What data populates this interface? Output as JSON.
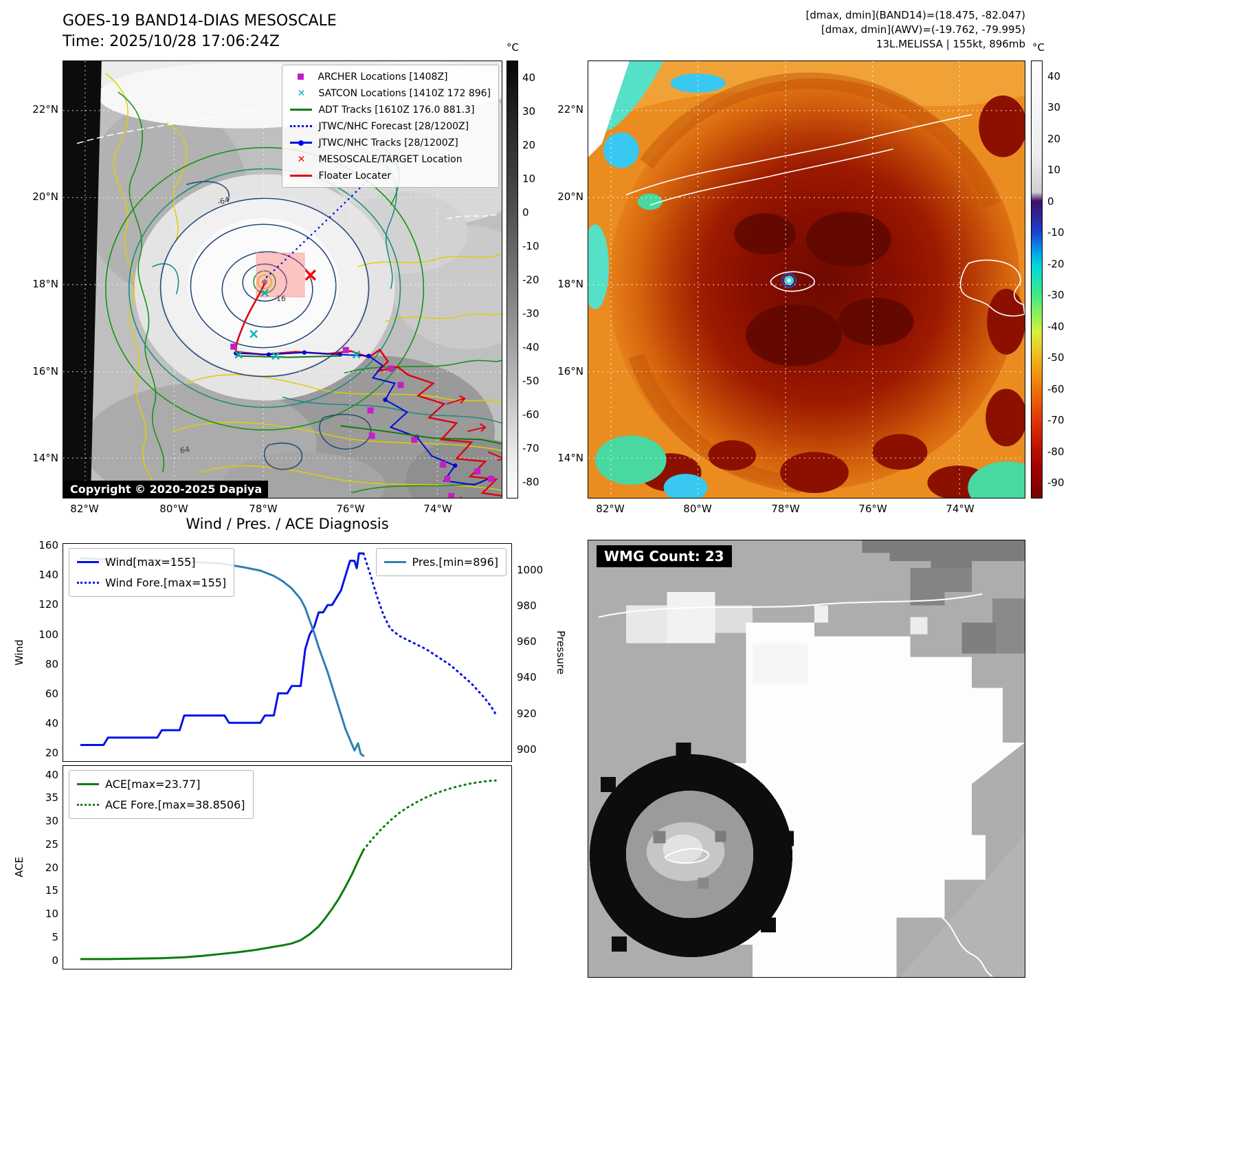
{
  "band14_panel": {
    "title": "GOES-19 BAND14-DIAS MESOSCALE",
    "time_line": "Time: 2025/10/28 17:06:24Z",
    "copyright": "Copyright © 2020-2025 Dapiya",
    "contour_labels": [
      "-64",
      "-16",
      "64"
    ],
    "axis": {
      "lat_ticks": [
        "22°N",
        "20°N",
        "18°N",
        "16°N",
        "14°N"
      ],
      "lon_ticks": [
        "82°W",
        "80°W",
        "78°W",
        "76°W",
        "74°W"
      ]
    },
    "colorbar": {
      "unit": "°C",
      "ticks": [
        40,
        30,
        20,
        10,
        0,
        -10,
        -20,
        -30,
        -40,
        -50,
        -60,
        -70,
        -80
      ]
    },
    "legend": [
      {
        "label": "ARCHER Locations [1408Z]",
        "marker": "square",
        "color": "#c41fc4"
      },
      {
        "label": "SATCON Locations [1410Z 172 896]",
        "marker": "x",
        "color": "#00b4b4"
      },
      {
        "label": "ADT Tracks [1610Z 176.0 881.3]",
        "marker": "line",
        "color": "#0b7d0b"
      },
      {
        "label": "JTWC/NHC Forecast [28/1200Z]",
        "marker": "dotted-line",
        "color": "#0008e8"
      },
      {
        "label": "JTWC/NHC Tracks [28/1200Z]",
        "marker": "line-dot",
        "color": "#0008e8"
      },
      {
        "label": "MESOSCALE/TARGET Location",
        "marker": "x",
        "color": "#ff0000"
      },
      {
        "label": "Floater Locater",
        "marker": "line",
        "color": "#e00010"
      }
    ]
  },
  "awv_panel": {
    "header_lines": [
      "[dmax, dmin](BAND14)=(18.475, -82.047)",
      "[dmax, dmin](AWV)=(-19.762, -79.995)",
      "13L.MELISSA | 155kt, 896mb"
    ],
    "axis": {
      "lat_ticks": [
        "22°N",
        "20°N",
        "18°N",
        "16°N",
        "14°N"
      ],
      "lon_ticks": [
        "82°W",
        "80°W",
        "78°W",
        "76°W",
        "74°W"
      ]
    },
    "colorbar": {
      "unit": "°C",
      "ticks": [
        40,
        30,
        20,
        10,
        0,
        -10,
        -20,
        -30,
        -40,
        -50,
        -60,
        -70,
        -80,
        -90
      ]
    }
  },
  "wmg_panel": {
    "label": "WMG Count: 23"
  },
  "chart_data": [
    {
      "type": "line",
      "title": "Wind / Pres. / ACE Diagnosis",
      "xlabel": "",
      "ylabel": "Wind",
      "y2label": "Pressure",
      "ylim": [
        20,
        160
      ],
      "y2lim": [
        896,
        1005
      ],
      "yticks": [
        160,
        140,
        120,
        100,
        80,
        60,
        40,
        20
      ],
      "y2ticks": [
        1000,
        980,
        960,
        940,
        920,
        900
      ],
      "grid": false,
      "legend_positions": [
        "upper left",
        "upper right"
      ],
      "series": [
        {
          "name": "Wind[max=155]",
          "color": "#0013e8",
          "style": "solid",
          "axis": "left",
          "width": 3,
          "x": [
            4,
            9,
            10,
            21,
            22,
            26,
            27,
            36,
            37,
            44,
            45,
            47,
            48,
            50,
            51,
            53,
            54,
            55,
            56,
            57,
            58,
            59,
            60,
            61,
            62,
            63,
            64,
            65,
            65.5,
            66,
            67
          ],
          "values": [
            25,
            25,
            30,
            30,
            35,
            35,
            45,
            45,
            40,
            40,
            45,
            45,
            60,
            60,
            65,
            65,
            90,
            100,
            105,
            115,
            115,
            120,
            120,
            125,
            130,
            140,
            150,
            150,
            145,
            155,
            155
          ]
        },
        {
          "name": "Wind Fore.[max=155]",
          "color": "#0013e8",
          "style": "dotted",
          "axis": "left",
          "width": 3,
          "x": [
            67,
            68.5,
            70,
            71.5,
            73,
            75,
            77,
            79,
            81,
            83,
            85,
            86.5,
            88,
            89.5,
            91,
            92.5,
            94,
            95.5,
            96.5
          ],
          "values": [
            155,
            141,
            126,
            113,
            104,
            99,
            96,
            93,
            90,
            86,
            82,
            79,
            75,
            71,
            67,
            62,
            57,
            51,
            46
          ]
        },
        {
          "name": "Pres.[min=896]",
          "color": "#2f7eb3",
          "style": "solid",
          "axis": "right",
          "width": 3,
          "x": [
            4,
            12,
            20,
            28,
            35,
            40,
            44,
            47,
            49,
            51,
            53,
            54,
            55,
            56,
            57,
            58,
            59,
            60,
            61,
            62,
            63,
            64,
            65,
            65.8,
            66.4,
            67
          ],
          "values": [
            1007,
            1006,
            1006,
            1005,
            1004,
            1002,
            1000,
            997,
            994,
            990,
            984,
            979,
            972,
            965,
            957,
            950,
            943,
            935,
            927,
            919,
            911,
            905,
            899,
            903,
            897,
            896
          ]
        }
      ]
    },
    {
      "type": "line",
      "xlabel": "",
      "ylabel": "ACE",
      "ylim": [
        0,
        40
      ],
      "yticks": [
        40,
        35,
        30,
        25,
        20,
        15,
        10,
        5,
        0
      ],
      "grid": false,
      "legend_positions": [
        "upper left"
      ],
      "series": [
        {
          "name": "ACE[max=23.77]",
          "color": "#0a7d0a",
          "style": "solid",
          "axis": "left",
          "width": 3,
          "x": [
            4,
            10,
            16,
            22,
            27,
            31,
            35,
            39,
            43,
            46,
            49,
            51,
            53,
            55,
            57,
            58.5,
            60,
            61.5,
            63,
            64.5,
            66,
            67
          ],
          "values": [
            0.1,
            0.1,
            0.2,
            0.3,
            0.5,
            0.8,
            1.2,
            1.6,
            2.1,
            2.6,
            3.1,
            3.5,
            4.2,
            5.5,
            7.2,
            9,
            11,
            13.2,
            15.8,
            18.6,
            21.8,
            23.77
          ]
        },
        {
          "name": "ACE Fore.[max=38.8506]",
          "color": "#0a7d0a",
          "style": "dotted",
          "axis": "left",
          "width": 3,
          "x": [
            67,
            69,
            71,
            73,
            75,
            77,
            79,
            81,
            83,
            85,
            87,
            89,
            91,
            93,
            95,
            96.5
          ],
          "values": [
            23.77,
            26.2,
            28.3,
            30.2,
            31.8,
            33.1,
            34.2,
            35.2,
            36,
            36.7,
            37.3,
            37.8,
            38.2,
            38.5,
            38.75,
            38.85
          ]
        }
      ]
    }
  ]
}
